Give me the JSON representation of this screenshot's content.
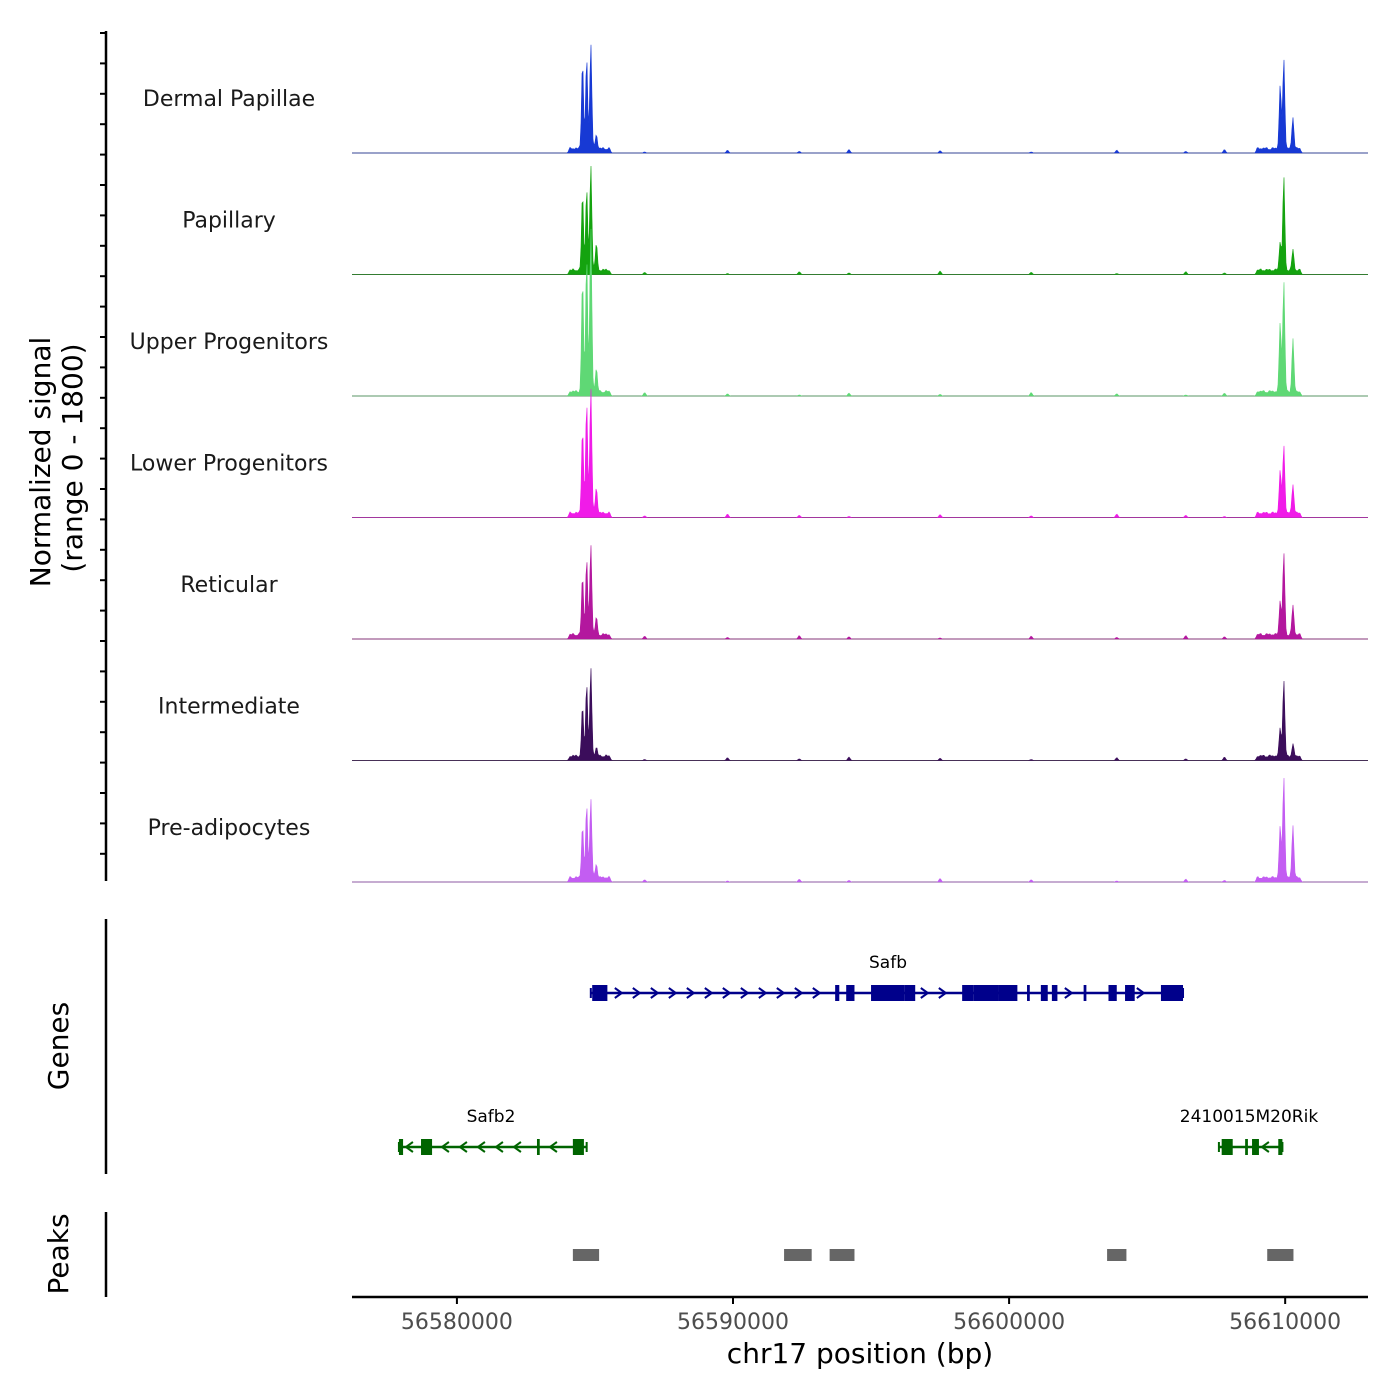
{
  "chart_data": {
    "type": "area",
    "title": "",
    "chromosome": "chr17",
    "xlabel": "chr17 position (bp)",
    "ylabel": "Normalized signal",
    "ylabel_range": "(range 0 - 1800)",
    "ylim": [
      0,
      1800
    ],
    "xlim": [
      56576200,
      56613000
    ],
    "x_ticks": [
      56580000,
      56590000,
      56600000,
      56610000
    ],
    "x_tick_labels": [
      "56580000",
      "56590000",
      "56600000",
      "56610000"
    ],
    "peak_window": [
      {
        "start": 56584100,
        "end": 56585600
      },
      {
        "start": 56609000,
        "end": 56610600
      }
    ],
    "series": [
      {
        "name": "Dermal Papillae",
        "color": "#1739d4",
        "peaks": [
          [
            56584550,
            1500
          ],
          [
            56584700,
            1550
          ],
          [
            56584850,
            1800
          ],
          [
            56585050,
            250
          ],
          [
            56609820,
            1100
          ],
          [
            56609950,
            1550
          ],
          [
            56610280,
            550
          ]
        ]
      },
      {
        "name": "Papillary",
        "color": "#14a30f",
        "peaks": [
          [
            56584550,
            1300
          ],
          [
            56584700,
            1400
          ],
          [
            56584850,
            1800
          ],
          [
            56585050,
            450
          ],
          [
            56609820,
            500
          ],
          [
            56609950,
            1600
          ],
          [
            56610280,
            350
          ]
        ]
      },
      {
        "name": "Upper Progenitors",
        "color": "#5fd875",
        "peaks": [
          [
            56584550,
            1900
          ],
          [
            56584700,
            2300
          ],
          [
            56584850,
            2800
          ],
          [
            56585050,
            400
          ],
          [
            56609820,
            1200
          ],
          [
            56609950,
            1900
          ],
          [
            56610280,
            900
          ]
        ]
      },
      {
        "name": "Lower Progenitors",
        "color": "#f01be8",
        "peaks": [
          [
            56584550,
            1450
          ],
          [
            56584700,
            1900
          ],
          [
            56584850,
            2150
          ],
          [
            56585050,
            450
          ],
          [
            56609820,
            750
          ],
          [
            56609950,
            1180
          ],
          [
            56610280,
            500
          ]
        ]
      },
      {
        "name": "Reticular",
        "color": "#b3179e",
        "peaks": [
          [
            56584550,
            1000
          ],
          [
            56584700,
            1300
          ],
          [
            56584850,
            1550
          ],
          [
            56585050,
            300
          ],
          [
            56609820,
            600
          ],
          [
            56609950,
            1400
          ],
          [
            56610280,
            500
          ]
        ]
      },
      {
        "name": "Intermediate",
        "color": "#3b0d5b",
        "peaks": [
          [
            56584550,
            850
          ],
          [
            56584700,
            1250
          ],
          [
            56584850,
            1500
          ],
          [
            56585050,
            150
          ],
          [
            56609820,
            500
          ],
          [
            56609950,
            1300
          ],
          [
            56610280,
            200
          ]
        ]
      },
      {
        "name": "Pre-adipocytes",
        "color": "#c35df2",
        "peaks": [
          [
            56584550,
            900
          ],
          [
            56584700,
            1250
          ],
          [
            56584850,
            1350
          ],
          [
            56585050,
            250
          ],
          [
            56609820,
            900
          ],
          [
            56609950,
            1750
          ],
          [
            56610280,
            900
          ]
        ]
      }
    ],
    "genes": [
      {
        "name": "Safb",
        "color": "#00008b",
        "strand": "+",
        "start": 56584850,
        "end": 56606300,
        "exons": [
          [
            56584900,
            56585450
          ],
          [
            56593700,
            56593850
          ],
          [
            56594100,
            56594400
          ],
          [
            56595000,
            56596200
          ],
          [
            56596200,
            56596600
          ],
          [
            56598300,
            56598700
          ],
          [
            56598700,
            56599600
          ],
          [
            56599600,
            56600300
          ],
          [
            56600650,
            56600750
          ],
          [
            56601150,
            56601400
          ],
          [
            56601550,
            56601750
          ],
          [
            56602700,
            56602800
          ],
          [
            56603600,
            56603900
          ],
          [
            56604200,
            56604550
          ],
          [
            56605500,
            56606300
          ]
        ]
      },
      {
        "name": "Safb2",
        "color": "#006400",
        "strand": "-",
        "start": 56577900,
        "end": 56584700,
        "exons": [
          [
            56577900,
            56578050
          ],
          [
            56578700,
            56579100
          ],
          [
            56582900,
            56583000
          ],
          [
            56584200,
            56584600
          ]
        ]
      },
      {
        "name": "2410015M20Rik",
        "color": "#006400",
        "strand": "-",
        "start": 56607600,
        "end": 56609900,
        "exons": [
          [
            56607700,
            56608100
          ],
          [
            56608550,
            56608650
          ],
          [
            56608800,
            56609050
          ],
          [
            56609750,
            56609900
          ]
        ]
      }
    ],
    "peaks_track": [
      {
        "start": 56584200,
        "end": 56585150
      },
      {
        "start": 56591850,
        "end": 56592850
      },
      {
        "start": 56593500,
        "end": 56594400
      },
      {
        "start": 56603550,
        "end": 56604250
      },
      {
        "start": 56609350,
        "end": 56610300
      }
    ],
    "panel_labels": {
      "genes": "Genes",
      "peaks": "Peaks"
    }
  }
}
